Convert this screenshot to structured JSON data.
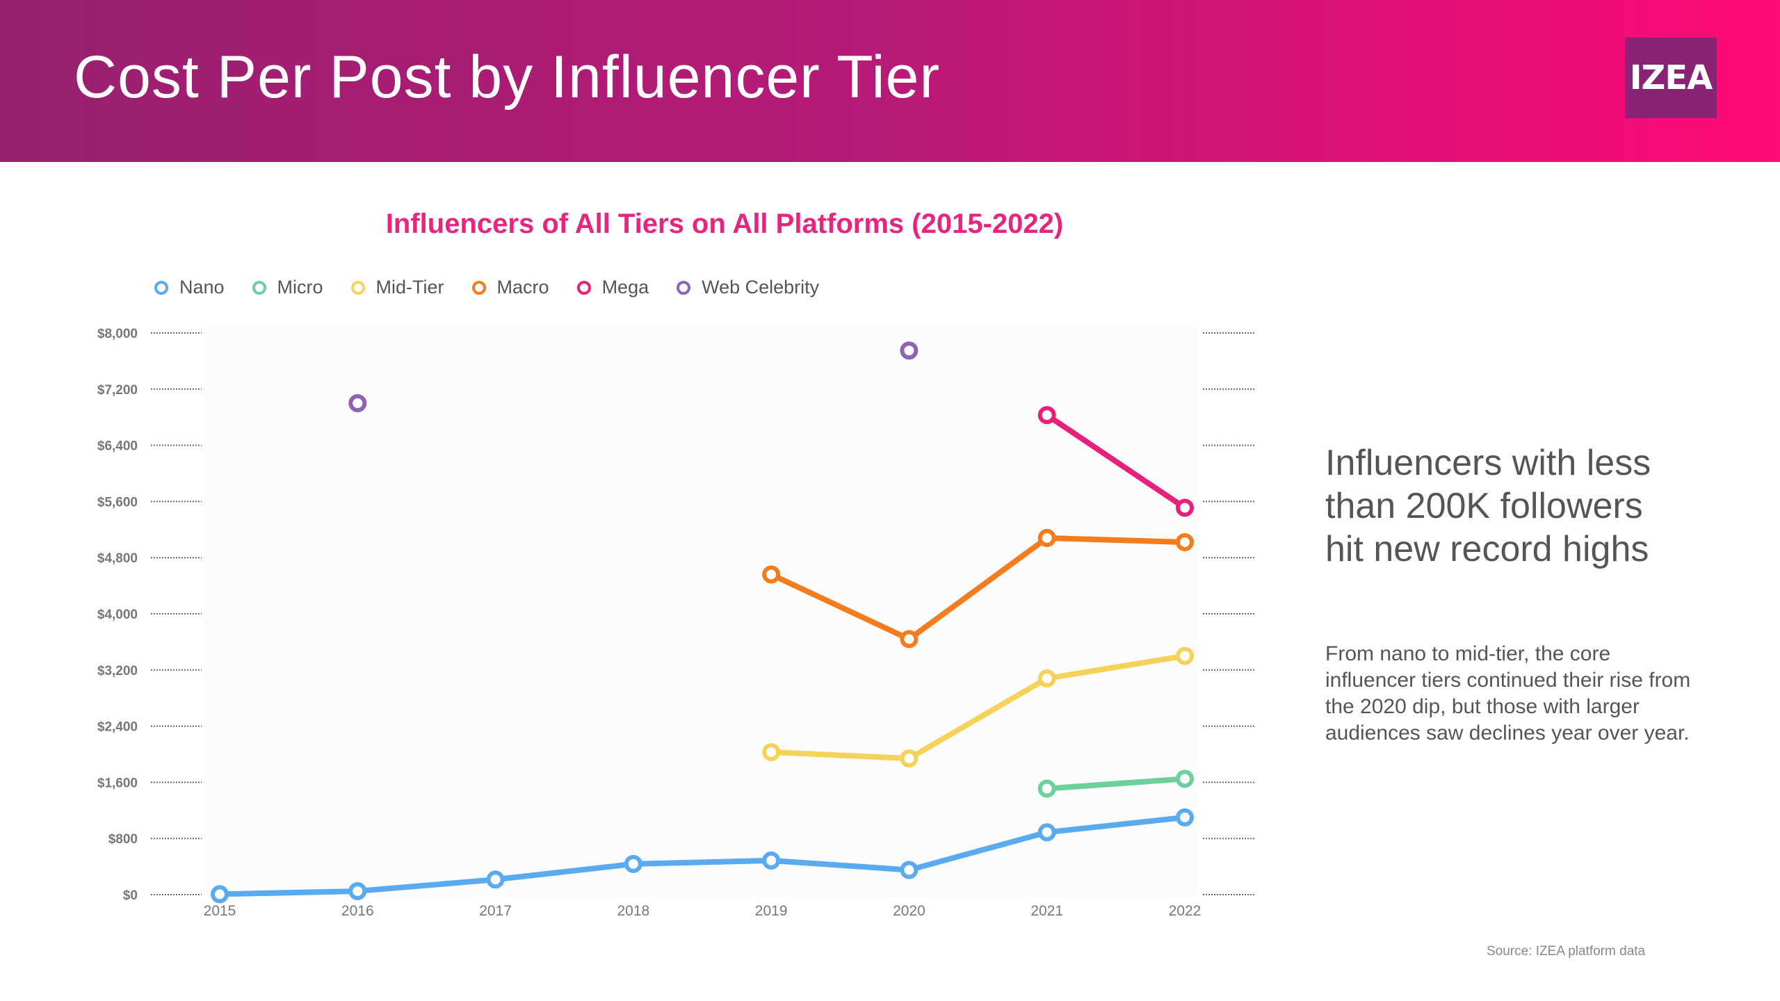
{
  "header": {
    "title": "Cost Per Post by Influencer Tier",
    "logo_text": "IZEA",
    "gradient_start": "#98206f",
    "gradient_end": "#ff0a76"
  },
  "callout": {
    "heading": "Influencers with less than 200K followers hit new record highs",
    "body": "From nano to mid-tier, the core influencer tiers continued their rise from the 2020 dip, but those with larger audiences saw declines year over year."
  },
  "source": "Source: IZEA platform data",
  "chart_data": {
    "type": "line",
    "title": "Influencers of All Tiers on All Platforms (2015-2022)",
    "xlabel": "",
    "ylabel": "",
    "x": [
      "2015",
      "2016",
      "2017",
      "2018",
      "2019",
      "2020",
      "2021",
      "2022"
    ],
    "ylim": [
      0,
      8000
    ],
    "yticks": [
      0,
      800,
      1600,
      2400,
      3200,
      4000,
      4800,
      5600,
      6400,
      7200,
      8000
    ],
    "ytick_labels": [
      "$0",
      "$800",
      "$1,600",
      "$2,400",
      "$3,200",
      "$4,000",
      "$4,800",
      "$5,600",
      "$6,400",
      "$7,200",
      "$8,000"
    ],
    "grid": "dotted guides outside plot",
    "legend_position": "top-left",
    "series": [
      {
        "name": "Nano",
        "color": "#5aaaf0",
        "values": [
          6,
          50,
          215,
          437,
          486,
          351,
          888,
          1100
        ]
      },
      {
        "name": "Micro",
        "color": "#6dcf9c",
        "values": [
          null,
          null,
          null,
          null,
          null,
          null,
          1510,
          1650
        ]
      },
      {
        "name": "Mid-Tier",
        "color": "#f5d35a",
        "values": [
          null,
          null,
          null,
          null,
          2030,
          1940,
          3080,
          3400
        ]
      },
      {
        "name": "Macro",
        "color": "#f47c1c",
        "values": [
          null,
          null,
          null,
          null,
          4560,
          3640,
          5080,
          5020
        ]
      },
      {
        "name": "Mega",
        "color": "#ea1e7b",
        "values": [
          null,
          null,
          null,
          null,
          null,
          null,
          6830,
          5510
        ]
      },
      {
        "name": "Web Celebrity",
        "color": "#8e62b4",
        "values": [
          null,
          7000,
          null,
          null,
          null,
          7750,
          null,
          null
        ]
      }
    ]
  }
}
